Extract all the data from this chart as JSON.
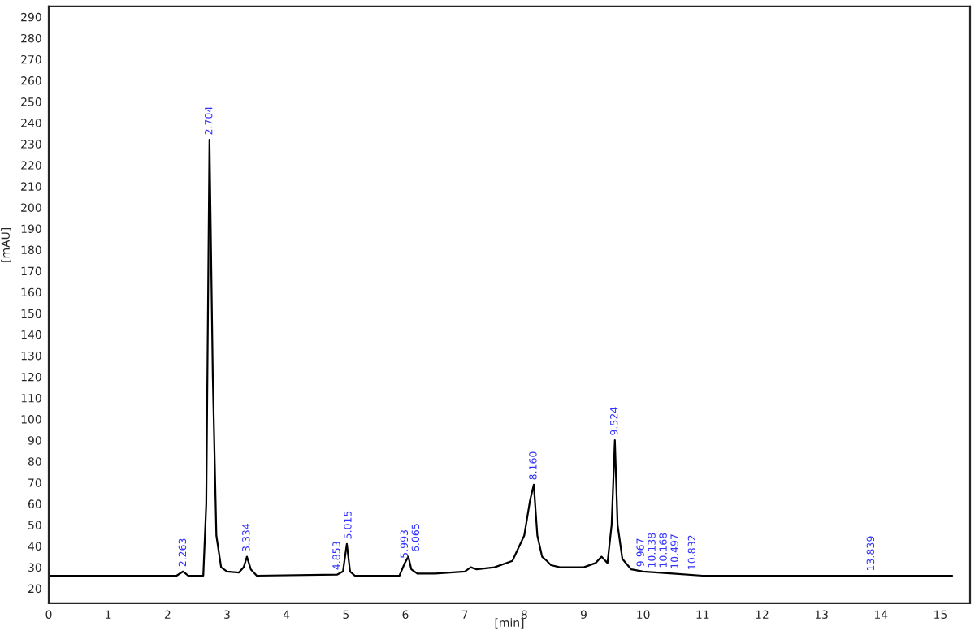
{
  "chart_data": {
    "type": "line",
    "xlabel": "[min]",
    "ylabel": "[mAU]",
    "xlim": [
      0,
      15.5
    ],
    "ylim": [
      13,
      295
    ],
    "xticks": [
      0,
      1,
      2,
      3,
      4,
      5,
      6,
      7,
      8,
      9,
      10,
      11,
      12,
      13,
      14,
      15
    ],
    "yticks": [
      20,
      30,
      40,
      50,
      60,
      70,
      80,
      90,
      100,
      110,
      120,
      130,
      140,
      150,
      160,
      170,
      180,
      190,
      200,
      210,
      220,
      230,
      240,
      250,
      260,
      270,
      280,
      290
    ],
    "grid": false,
    "marker": "none",
    "line_style": "solid",
    "series": [
      {
        "color": "#000000",
        "x": [
          0,
          2.15,
          2.26,
          2.35,
          2.6,
          2.65,
          2.704,
          2.76,
          2.82,
          2.9,
          3.0,
          3.2,
          3.28,
          3.334,
          3.4,
          3.5,
          4.85,
          4.95,
          5.015,
          5.07,
          5.15,
          5.9,
          5.99,
          6.05,
          6.1,
          6.2,
          6.5,
          7.0,
          7.1,
          7.2,
          7.5,
          7.8,
          8.0,
          8.1,
          8.16,
          8.22,
          8.3,
          8.38,
          8.45,
          8.6,
          9.0,
          9.2,
          9.3,
          9.4,
          9.47,
          9.524,
          9.57,
          9.65,
          9.8,
          10.0,
          10.5,
          11.0,
          15.2
        ],
        "values": [
          26,
          26,
          28,
          26,
          26,
          60,
          232,
          120,
          45,
          30,
          28,
          27.5,
          30,
          35,
          29,
          26,
          26.5,
          28,
          41,
          28,
          26,
          26,
          32,
          35,
          29,
          27,
          27,
          28,
          30,
          29,
          30,
          33,
          45,
          62,
          69,
          45,
          35,
          33,
          31,
          30,
          30,
          32,
          35,
          32,
          50,
          90,
          50,
          34,
          29,
          28,
          27,
          26,
          26
        ]
      }
    ],
    "annotations": [
      {
        "text": "2.263",
        "x": 2.263,
        "y": 28
      },
      {
        "text": "2.704",
        "x": 2.704,
        "y": 232
      },
      {
        "text": "3.334",
        "x": 3.334,
        "y": 35
      },
      {
        "text": "4.853",
        "x": 4.853,
        "y": 26.5
      },
      {
        "text": "5.015",
        "x": 5.015,
        "y": 41
      },
      {
        "text": "5.993",
        "x": 5.993,
        "y": 32
      },
      {
        "text": "6.065",
        "x": 6.065,
        "y": 35
      },
      {
        "text": "8.160",
        "x": 8.16,
        "y": 69
      },
      {
        "text": "9.524",
        "x": 9.524,
        "y": 90
      },
      {
        "text": "9.967",
        "x": 9.967,
        "y": 28
      },
      {
        "text": "10.138",
        "x": 10.138,
        "y": 27.5
      },
      {
        "text": "10.168",
        "x": 10.168,
        "y": 27.5
      },
      {
        "text": "10.497",
        "x": 10.497,
        "y": 27
      },
      {
        "text": "10.832",
        "x": 10.832,
        "y": 26.5
      },
      {
        "text": "13.839",
        "x": 13.839,
        "y": 26
      }
    ]
  }
}
